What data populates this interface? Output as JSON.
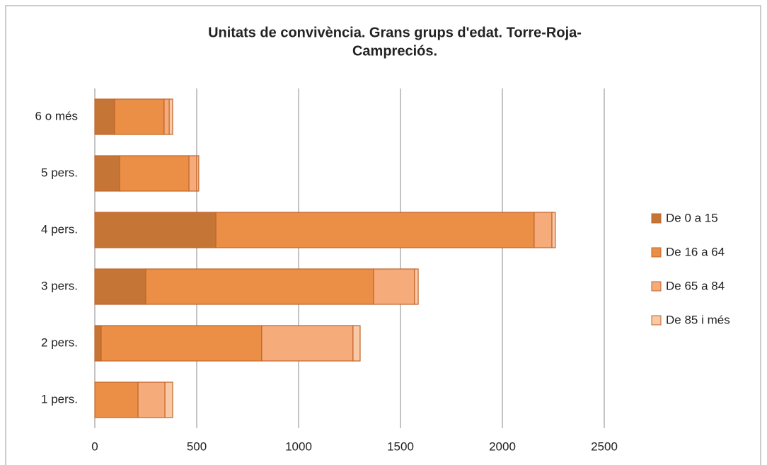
{
  "chart_data": {
    "type": "stacked-barh",
    "title": [
      "Unitats de convivència. Grans grups d'edat. Torre-Roja-",
      "Campreciós."
    ],
    "categories": [
      "1 pers.",
      "2 pers.",
      "3 pers.",
      "4 pers.",
      "5 pers.",
      "6 o més"
    ],
    "series": [
      {
        "name": "De 0 a 15",
        "color": "#c57535",
        "values": [
          0,
          31,
          250,
          594,
          122,
          97
        ]
      },
      {
        "name": "De 16 a 64",
        "color": "#ea8f45",
        "values": [
          212,
          788,
          1118,
          1562,
          340,
          243
        ]
      },
      {
        "name": "De 65 a 84",
        "color": "#f6ab7a",
        "values": [
          132,
          448,
          201,
          87,
          38,
          25
        ]
      },
      {
        "name": "De 85 i més",
        "color": "#f9c8a4",
        "values": [
          38,
          35,
          18,
          17,
          10,
          17
        ]
      }
    ],
    "xlim": [
      0,
      2500
    ],
    "xticks": [
      0,
      500,
      1000,
      1500,
      2000,
      2500
    ],
    "grid": true,
    "legend": "right"
  }
}
